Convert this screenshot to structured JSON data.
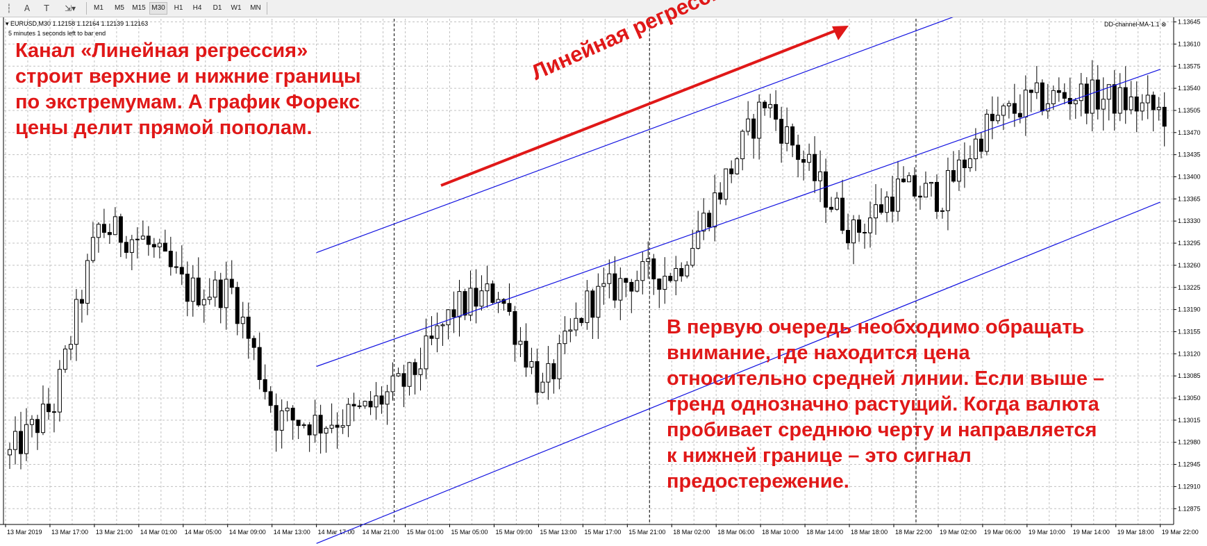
{
  "toolbar": {
    "tools": [
      {
        "icon": "crosshair-lines-icon",
        "glyph": "┆"
      },
      {
        "icon": "text-label-icon",
        "glyph": "A"
      },
      {
        "icon": "text-box-icon",
        "glyph": "T"
      },
      {
        "icon": "arrow-shapes-icon",
        "glyph": "⇲▾"
      }
    ],
    "timeframes": [
      "M1",
      "M5",
      "M15",
      "M30",
      "H1",
      "H4",
      "D1",
      "W1",
      "MN"
    ],
    "active_timeframe": "M30"
  },
  "chart": {
    "symbol_line": "EURUSD,M30  1.12158 1.12164 1.12139 1.12163",
    "timer_text": "5 minutes 1 seconds left to bar end",
    "indicator_name": "DD-channel-MA-1.1",
    "close_glyph": "⊗"
  },
  "colors": {
    "candle_body": "#000000",
    "channel_lines": "#1010e0",
    "annotation": "#e01818",
    "grid": "#c0c0c0",
    "period_separator": "#000000"
  },
  "annotations": {
    "left": [
      "Канал «Линейная регрессия»",
      "строит верхние и нижние границы",
      "по экстремумам. А график Форекс",
      "цены делит прямой пополам."
    ],
    "diagonal": "Линейная регрессия",
    "right": [
      "В первую очередь необходимо обращать",
      "внимание, где находится цена",
      "относительно средней линии. Если выше –",
      "тренд однозначно растущий. Когда валюта",
      "пробивает среднюю черту и направляется",
      "к нижней границе – это сигнал",
      "предостережение."
    ]
  },
  "chart_data": {
    "type": "candlestick",
    "symbol": "EURUSD",
    "timeframe": "M30",
    "grid": true,
    "y_ticks": [
      "1.13645",
      "1.13610",
      "1.13575",
      "1.13540",
      "1.13505",
      "1.13470",
      "1.13435",
      "1.13400",
      "1.13365",
      "1.13330",
      "1.13295",
      "1.13260",
      "1.13225",
      "1.13190",
      "1.13155",
      "1.13120",
      "1.13085",
      "1.13050",
      "1.13015",
      "1.12980",
      "1.12945",
      "1.12910",
      "1.12875"
    ],
    "ylim": [
      1.1285,
      1.1365
    ],
    "x_ticks": [
      "13 Mar 2019",
      "13 Mar 17:00",
      "13 Mar 21:00",
      "14 Mar 01:00",
      "14 Mar 05:00",
      "14 Mar 09:00",
      "14 Mar 13:00",
      "14 Mar 17:00",
      "14 Mar 21:00",
      "15 Mar 01:00",
      "15 Mar 05:00",
      "15 Mar 09:00",
      "15 Mar 13:00",
      "15 Mar 17:00",
      "15 Mar 21:00",
      "18 Mar 02:00",
      "18 Mar 06:00",
      "18 Mar 10:00",
      "18 Mar 14:00",
      "18 Mar 18:00",
      "18 Mar 22:00",
      "19 Mar 02:00",
      "19 Mar 06:00",
      "19 Mar 10:00",
      "19 Mar 14:00",
      "19 Mar 18:00",
      "19 Mar 22:00"
    ],
    "period_separators": [
      "14 Mar 00:00",
      "15 Mar 00:00",
      "18 Mar 00:00",
      "19 Mar 00:00"
    ],
    "anchors": [
      [
        "13 Mar 2019",
        1.1296
      ],
      [
        "13 Mar 17:00",
        1.1304
      ],
      [
        "13 Mar 21:00",
        1.1332
      ],
      [
        "14 Mar 01:00",
        1.133
      ],
      [
        "14 Mar 05:00",
        1.1322
      ],
      [
        "14 Mar 09:00",
        1.1322
      ],
      [
        "14 Mar 13:00",
        1.1302
      ],
      [
        "14 Mar 17:00",
        1.1301
      ],
      [
        "14 Mar 21:00",
        1.1303
      ],
      [
        "15 Mar 01:00",
        1.1308
      ],
      [
        "15 Mar 05:00",
        1.1319
      ],
      [
        "15 Mar 09:00",
        1.1322
      ],
      [
        "15 Mar 13:00",
        1.1306
      ],
      [
        "15 Mar 17:00",
        1.132
      ],
      [
        "15 Mar 21:00",
        1.1324
      ],
      [
        "18 Mar 02:00",
        1.1325
      ],
      [
        "18 Mar 06:00",
        1.1338
      ],
      [
        "18 Mar 10:00",
        1.1352
      ],
      [
        "18 Mar 14:00",
        1.1341
      ],
      [
        "18 Mar 18:00",
        1.1331
      ],
      [
        "18 Mar 22:00",
        1.1338
      ],
      [
        "19 Mar 02:00",
        1.1337
      ],
      [
        "19 Mar 06:00",
        1.1348
      ],
      [
        "19 Mar 10:00",
        1.1352
      ],
      [
        "19 Mar 14:00",
        1.1353
      ],
      [
        "19 Mar 18:00",
        1.1352
      ],
      [
        "19 Mar 22:00",
        1.135
      ]
    ],
    "channel": {
      "name": "Линейная регрессия",
      "upper": [
        [
          "14 Mar 17:00",
          1.1328
        ],
        [
          "19 Mar 06:00",
          1.1367
        ]
      ],
      "middle": [
        [
          "14 Mar 17:00",
          1.131
        ],
        [
          "19 Mar 22:00",
          1.1357
        ]
      ],
      "lower": [
        [
          "14 Mar 17:00",
          1.1282
        ],
        [
          "19 Mar 22:00",
          1.1336
        ]
      ]
    }
  }
}
